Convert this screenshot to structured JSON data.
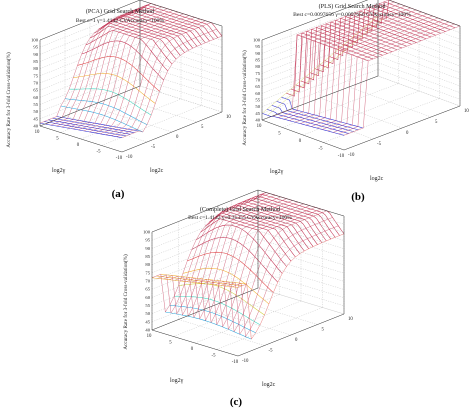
{
  "figure": {
    "panels": [
      {
        "caption": "(a)",
        "title": "(PCA) Grid Search Method",
        "subtitle": "Best c=1 γ=1.4142 CVAccuracy=100%",
        "zlabel": "Accuracy Rate for 3-fold Cross-validation(%)",
        "xlabel": "log2γ",
        "ylabel": "log2c"
      },
      {
        "caption": "(b)",
        "title": "(PLS) Grid Search Method",
        "subtitle": "Best c=0.0097656 γ=0.0097656 CVAccuracy=100%",
        "zlabel": "Accuracy Rate for 3-fold Cross-validation(%)",
        "xlabel": "log2γ",
        "ylabel": "log2c"
      },
      {
        "caption": "(c)",
        "title": "(Complete) Grid Search Method",
        "subtitle": "Best c=1.4142 γ=0.31355 CVAccuracy=100%",
        "zlabel": "Accuracy Rate for 3-fold Cross-validation(%)",
        "xlabel": "log2γ",
        "ylabel": "log2c"
      }
    ]
  },
  "chart_data": [
    {
      "type": "surface",
      "title": "(PCA) Grid Search Method",
      "subtitle": "Best c=1 γ=1.4142 CVAccuracy=100%",
      "zlabel": "Accuracy Rate for 3-fold Cross-validation(%)",
      "xlabel": "log2γ",
      "ylabel": "log2c",
      "zlim": [
        40,
        100
      ],
      "zticks": [
        40,
        45,
        50,
        55,
        60,
        65,
        70,
        75,
        80,
        85,
        90,
        95,
        100
      ],
      "xticks": [
        10,
        5,
        0,
        -5,
        -10
      ],
      "yticks": [
        -10,
        -5,
        0,
        5,
        10
      ],
      "grid": true,
      "peak": 100,
      "floor": 42,
      "colors": [
        "#2a2ad0",
        "#2aa8e0",
        "#3ad8c0",
        "#d0d040",
        "#f0b030",
        "#e04040",
        "#c03050"
      ]
    },
    {
      "type": "surface",
      "title": "(PLS) Grid Search Method",
      "subtitle": "Best c=0.0097656 γ=0.0097656 CVAccuracy=100%",
      "zlabel": "Accuracy Rate for 3-fold Cross-validation(%)",
      "xlabel": "log2γ",
      "ylabel": "log2c",
      "zlim": [
        40,
        100
      ],
      "zticks": [
        40,
        45,
        50,
        55,
        60,
        65,
        70,
        75,
        80,
        85,
        90,
        95,
        100
      ],
      "xticks": [
        10,
        5,
        0,
        -5,
        -10
      ],
      "yticks": [
        -10,
        -5,
        0,
        5,
        10
      ],
      "grid": true,
      "peak": 100,
      "floor": 45,
      "colors": [
        "#2a2ad0",
        "#2aa8e0",
        "#3ad8c0",
        "#d0d040",
        "#f0b030",
        "#e04040",
        "#c03050"
      ]
    },
    {
      "type": "surface",
      "title": "(Complete) Grid Search Method",
      "subtitle": "Best c=1.4142 γ=0.31355 CVAccuracy=100%",
      "zlabel": "Accuracy Rate for 3-fold Cross-validation(%)",
      "xlabel": "log2γ",
      "ylabel": "log2c",
      "zlim": [
        40,
        100
      ],
      "zticks": [
        40,
        45,
        50,
        55,
        60,
        65,
        70,
        75,
        80,
        85,
        90,
        95,
        100
      ],
      "xticks": [
        10,
        5,
        0,
        -5,
        -10
      ],
      "yticks": [
        -10,
        -5,
        0,
        5,
        10
      ],
      "grid": true,
      "peak": 100,
      "floor": 42,
      "colors": [
        "#2a2ad0",
        "#2aa8e0",
        "#3ad8c0",
        "#d0d040",
        "#f0b030",
        "#e04040",
        "#c03050"
      ]
    }
  ]
}
